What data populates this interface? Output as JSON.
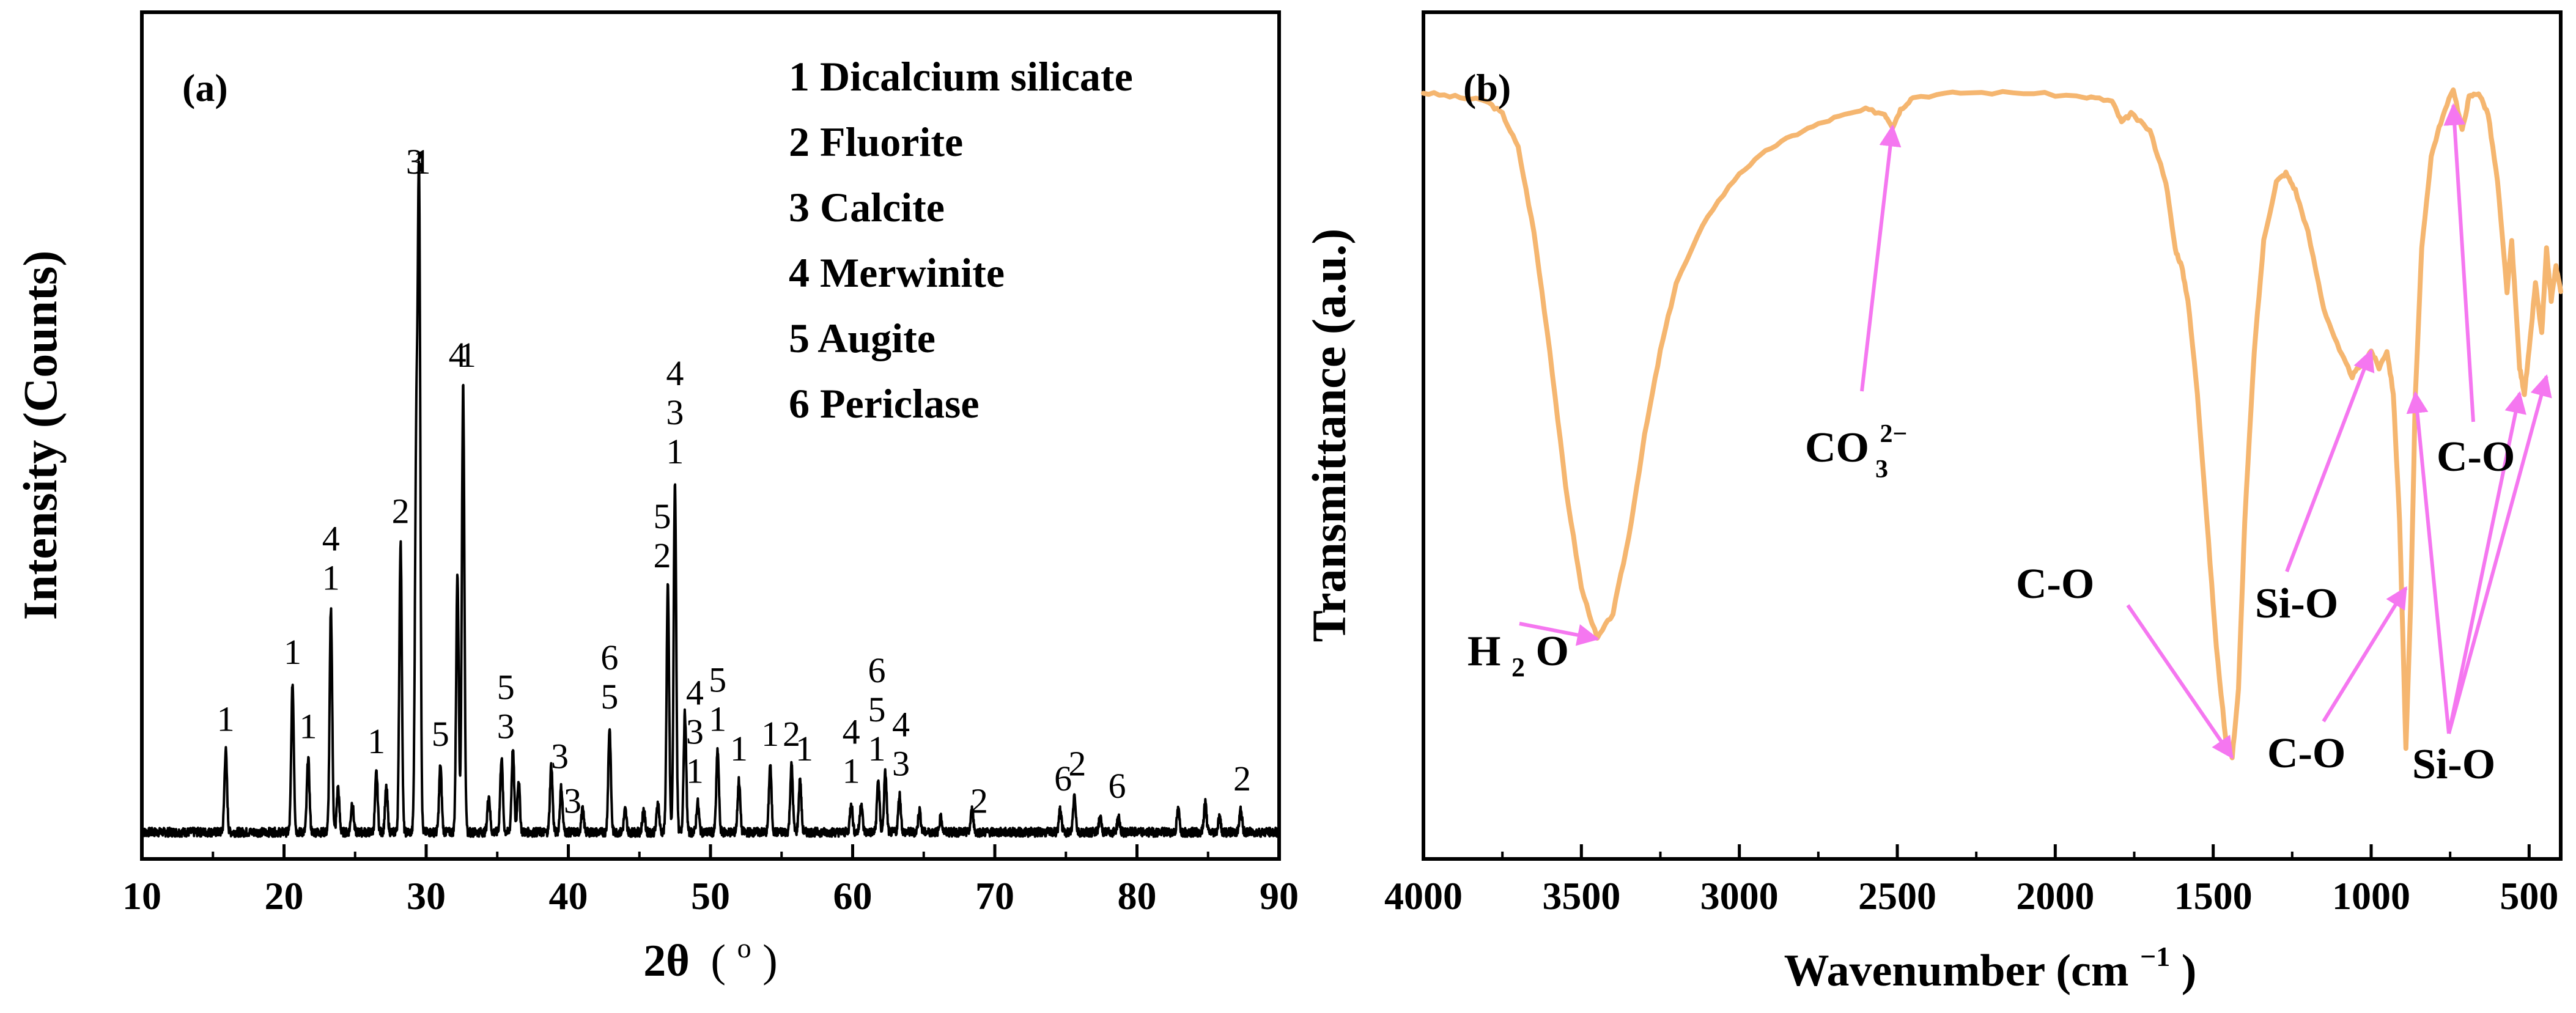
{
  "chart_data": [
    {
      "type": "line",
      "panel_label": "(a)",
      "title": "",
      "xlabel": "2θ (°)",
      "xlabel_main": "2θ",
      "xlabel_open": "(",
      "xlabel_unit": "o",
      "xlabel_close": ")",
      "ylabel": "Intensity (Counts)",
      "xlim": [
        10,
        90
      ],
      "ylim": [
        0,
        1.05
      ],
      "xticks": [
        "10",
        "20",
        "30",
        "40",
        "50",
        "60",
        "70",
        "80",
        "90"
      ],
      "xtick_values": [
        10,
        20,
        30,
        40,
        50,
        60,
        70,
        80,
        90
      ],
      "series": [
        {
          "name": "XRD pattern",
          "color": "#000000",
          "baseline": 0.022,
          "peaks": [
            [
              15.9,
              0.11
            ],
            [
              20.6,
              0.2
            ],
            [
              21.7,
              0.1
            ],
            [
              23.3,
              0.3
            ],
            [
              23.8,
              0.06
            ],
            [
              24.8,
              0.04
            ],
            [
              26.5,
              0.08
            ],
            [
              27.2,
              0.06
            ],
            [
              28.2,
              0.39
            ],
            [
              29.5,
              0.86
            ],
            [
              29.3,
              0.5
            ],
            [
              31.0,
              0.09
            ],
            [
              32.6,
              0.6
            ],
            [
              32.2,
              0.35
            ],
            [
              34.4,
              0.05
            ],
            [
              35.3,
              0.1
            ],
            [
              36.1,
              0.11
            ],
            [
              36.5,
              0.07
            ],
            [
              38.8,
              0.09
            ],
            [
              39.5,
              0.06
            ],
            [
              41.0,
              0.03
            ],
            [
              42.9,
              0.14
            ],
            [
              44.0,
              0.03
            ],
            [
              45.3,
              0.03
            ],
            [
              46.3,
              0.04
            ],
            [
              47.0,
              0.33
            ],
            [
              47.5,
              0.47
            ],
            [
              48.2,
              0.16
            ],
            [
              49.1,
              0.04
            ],
            [
              50.5,
              0.11
            ],
            [
              52.0,
              0.07
            ],
            [
              54.2,
              0.09
            ],
            [
              55.7,
              0.09
            ],
            [
              56.3,
              0.07
            ],
            [
              59.9,
              0.04
            ],
            [
              60.6,
              0.04
            ],
            [
              61.8,
              0.07
            ],
            [
              62.3,
              0.08
            ],
            [
              63.3,
              0.05
            ],
            [
              64.7,
              0.03
            ],
            [
              66.2,
              0.02
            ],
            [
              68.4,
              0.03
            ],
            [
              74.6,
              0.03
            ],
            [
              75.6,
              0.05
            ],
            [
              77.4,
              0.02
            ],
            [
              78.7,
              0.02
            ],
            [
              82.9,
              0.03
            ],
            [
              84.8,
              0.04
            ],
            [
              85.8,
              0.02
            ],
            [
              87.3,
              0.03
            ]
          ]
        }
      ],
      "legend": [
        "1 Dicalcium silicate",
        "2 Fluorite",
        "3 Calcite",
        "4 Merwinite",
        "5 Augite",
        "6 Periclase"
      ],
      "annotations": [
        {
          "x": 15.9,
          "stack": [
            "1"
          ]
        },
        {
          "x": 20.6,
          "stack": [
            "1"
          ]
        },
        {
          "x": 21.7,
          "stack": [
            "1"
          ]
        },
        {
          "x": 23.3,
          "stack": [
            "1",
            "4"
          ]
        },
        {
          "x": 26.5,
          "stack": [
            "1"
          ]
        },
        {
          "x": 28.2,
          "stack": [
            "2"
          ]
        },
        {
          "x": 29.2,
          "stack": [
            "3"
          ]
        },
        {
          "x": 29.7,
          "stack": [
            "1"
          ]
        },
        {
          "x": 31.0,
          "stack": [
            "5"
          ]
        },
        {
          "x": 32.2,
          "stack": [
            "4"
          ]
        },
        {
          "x": 32.9,
          "stack": [
            "1"
          ]
        },
        {
          "x": 35.6,
          "stack": [
            "3",
            "5"
          ]
        },
        {
          "x": 39.4,
          "stack": [
            "3"
          ]
        },
        {
          "x": 40.3,
          "stack": [
            "3"
          ]
        },
        {
          "x": 42.9,
          "stack": [
            "5",
            "6"
          ]
        },
        {
          "x": 46.6,
          "stack": [
            "2",
            "5"
          ]
        },
        {
          "x": 47.5,
          "stack": [
            "1",
            "3",
            "4"
          ]
        },
        {
          "x": 48.9,
          "stack": [
            "1",
            "3",
            "4"
          ]
        },
        {
          "x": 50.5,
          "stack": [
            "1",
            "5"
          ]
        },
        {
          "x": 52.0,
          "stack": [
            "1"
          ]
        },
        {
          "x": 54.2,
          "stack": [
            "1"
          ]
        },
        {
          "x": 55.7,
          "stack": [
            "2"
          ]
        },
        {
          "x": 56.6,
          "stack": [
            "1"
          ]
        },
        {
          "x": 59.9,
          "stack": [
            "1",
            "4"
          ]
        },
        {
          "x": 61.7,
          "stack": [
            "1",
            "5",
            "6"
          ]
        },
        {
          "x": 63.4,
          "stack": [
            "3",
            "4"
          ]
        },
        {
          "x": 68.9,
          "stack": [
            "2"
          ]
        },
        {
          "x": 74.8,
          "stack": [
            "6"
          ]
        },
        {
          "x": 75.8,
          "stack": [
            "2"
          ]
        },
        {
          "x": 78.6,
          "stack": [
            "6"
          ]
        },
        {
          "x": 87.4,
          "stack": [
            "2"
          ]
        }
      ]
    },
    {
      "type": "line",
      "panel_label": "(b)",
      "title": "",
      "xlabel": "Wavenumber (cm⁻¹)",
      "xlabel_main": "Wavenumber (cm",
      "xlabel_sup": "−1",
      "xlabel_close": ")",
      "ylabel": "Transmittance (a.u.)",
      "xlim": [
        4000,
        400
      ],
      "x_reversed": true,
      "ylim": [
        0,
        1.0
      ],
      "xticks": [
        "4000",
        "3500",
        "3000",
        "2500",
        "2000",
        "1500",
        "1000",
        "500"
      ],
      "xtick_values": [
        4000,
        3500,
        3000,
        2500,
        2000,
        1500,
        1000,
        500
      ],
      "series": [
        {
          "name": "FTIR spectrum",
          "color": "#F5B670",
          "points": [
            [
              4000,
              0.905
            ],
            [
              3900,
              0.9
            ],
            [
              3800,
              0.895
            ],
            [
              3750,
              0.88
            ],
            [
              3700,
              0.84
            ],
            [
              3650,
              0.74
            ],
            [
              3600,
              0.6
            ],
            [
              3550,
              0.44
            ],
            [
              3500,
              0.32
            ],
            [
              3450,
              0.26
            ],
            [
              3400,
              0.29
            ],
            [
              3350,
              0.38
            ],
            [
              3300,
              0.5
            ],
            [
              3250,
              0.6
            ],
            [
              3200,
              0.68
            ],
            [
              3100,
              0.76
            ],
            [
              3000,
              0.81
            ],
            [
              2900,
              0.84
            ],
            [
              2800,
              0.86
            ],
            [
              2700,
              0.875
            ],
            [
              2600,
              0.885
            ],
            [
              2540,
              0.88
            ],
            [
              2515,
              0.865
            ],
            [
              2490,
              0.885
            ],
            [
              2450,
              0.9
            ],
            [
              2300,
              0.905
            ],
            [
              2100,
              0.905
            ],
            [
              1900,
              0.9
            ],
            [
              1820,
              0.895
            ],
            [
              1790,
              0.87
            ],
            [
              1760,
              0.88
            ],
            [
              1700,
              0.86
            ],
            [
              1650,
              0.8
            ],
            [
              1620,
              0.72
            ],
            [
              1600,
              0.7
            ],
            [
              1580,
              0.66
            ],
            [
              1550,
              0.55
            ],
            [
              1520,
              0.4
            ],
            [
              1490,
              0.25
            ],
            [
              1460,
              0.14
            ],
            [
              1440,
              0.12
            ],
            [
              1420,
              0.2
            ],
            [
              1400,
              0.4
            ],
            [
              1370,
              0.6
            ],
            [
              1340,
              0.73
            ],
            [
              1300,
              0.8
            ],
            [
              1270,
              0.81
            ],
            [
              1240,
              0.79
            ],
            [
              1200,
              0.74
            ],
            [
              1150,
              0.65
            ],
            [
              1100,
              0.6
            ],
            [
              1060,
              0.57
            ],
            [
              1030,
              0.585
            ],
            [
              1000,
              0.6
            ],
            [
              975,
              0.58
            ],
            [
              950,
              0.6
            ],
            [
              930,
              0.55
            ],
            [
              910,
              0.4
            ],
            [
              890,
              0.13
            ],
            [
              875,
              0.3
            ],
            [
              860,
              0.55
            ],
            [
              840,
              0.72
            ],
            [
              810,
              0.83
            ],
            [
              780,
              0.87
            ],
            [
              740,
              0.91
            ],
            [
              712,
              0.86
            ],
            [
              690,
              0.9
            ],
            [
              660,
              0.905
            ],
            [
              630,
              0.88
            ],
            [
              600,
              0.8
            ],
            [
              570,
              0.67
            ],
            [
              555,
              0.73
            ],
            [
              530,
              0.58
            ],
            [
              515,
              0.55
            ],
            [
              500,
              0.6
            ],
            [
              480,
              0.68
            ],
            [
              460,
              0.62
            ],
            [
              445,
              0.72
            ],
            [
              430,
              0.66
            ],
            [
              415,
              0.7
            ],
            [
              400,
              0.67
            ]
          ]
        }
      ],
      "annotations": [
        {
          "text": "H₂O",
          "main": "H",
          "sub": "2",
          "rest": "O",
          "target": [
            3450,
            0.26
          ]
        },
        {
          "text": "CO₃²⁻",
          "main": "CO",
          "sub": "3",
          "sup": "2−",
          "target": [
            2515,
            0.865
          ]
        },
        {
          "text": "C-O",
          "target": [
            1440,
            0.12
          ]
        },
        {
          "text": "Si-O",
          "target": [
            1000,
            0.6
          ]
        },
        {
          "text": "C-O",
          "target": [
            890,
            0.32
          ]
        },
        {
          "text": "C-O",
          "target": [
            740,
            0.89
          ]
        },
        {
          "text": "Si-O",
          "targets": [
            [
              860,
              0.55
            ],
            [
              530,
              0.55
            ],
            [
              445,
              0.57
            ]
          ]
        }
      ],
      "annotation_color": "#F577F0"
    }
  ]
}
